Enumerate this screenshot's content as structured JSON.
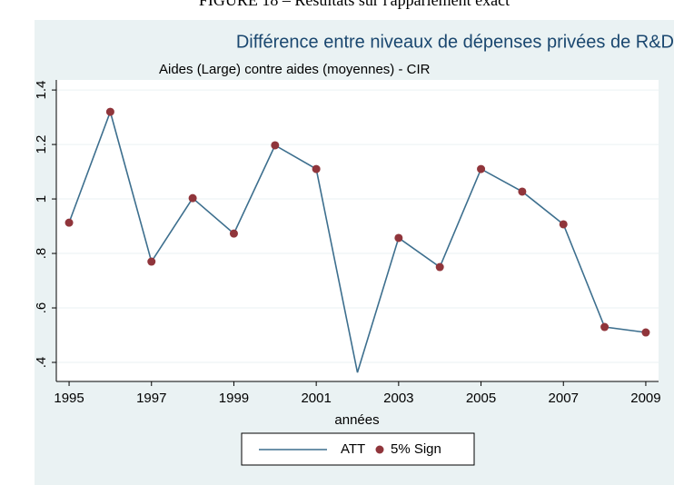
{
  "caption": "FIGURE 18 – Résultats sur l'appariement exact",
  "chart_data": {
    "type": "line",
    "title": "Différence entre niveaux de dépenses privées de R&D",
    "subtitle": "Aides  (Large)  contre aides (moyennes) -  CIR",
    "xlabel": "années",
    "x": [
      1995,
      1996,
      1997,
      1998,
      1999,
      2000,
      2001,
      2002,
      2003,
      2004,
      2005,
      2006,
      2007,
      2008,
      2009
    ],
    "series": [
      {
        "name": "ATT",
        "color": "#3d6f8e",
        "marker": "line",
        "values": [
          0.913,
          1.32,
          0.77,
          1.003,
          0.873,
          1.197,
          1.11,
          0.363,
          0.857,
          0.75,
          1.11,
          1.027,
          0.907,
          0.53,
          0.51
        ]
      },
      {
        "name": "5% Sign",
        "color": "#90353b",
        "marker": "dot",
        "values": [
          0.913,
          1.32,
          0.77,
          1.003,
          0.873,
          1.197,
          1.11,
          null,
          0.857,
          0.75,
          1.11,
          1.027,
          0.907,
          0.53,
          0.51
        ]
      }
    ],
    "xlim": [
      1994.69,
      2009.31
    ],
    "xticks": [
      1995,
      1997,
      1999,
      2001,
      2003,
      2005,
      2007,
      2009
    ],
    "ylim": [
      0.33,
      1.437
    ],
    "yticks": [
      {
        "value": 0.4,
        "label": ".4"
      },
      {
        "value": 0.6,
        "label": ".6"
      },
      {
        "value": 0.8,
        "label": ".8"
      },
      1,
      1.2,
      1.4
    ],
    "grid": true,
    "legend": "bottom"
  }
}
